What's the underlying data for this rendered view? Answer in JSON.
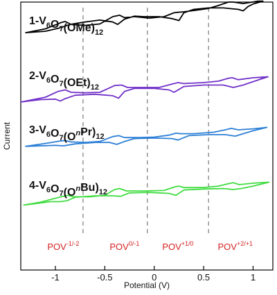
{
  "chart_data": {
    "type": "line",
    "title": "",
    "xlabel": "Potential (V)",
    "ylabel": "Current",
    "xlim": [
      -1.35,
      1.2
    ],
    "x_ticks": [
      {
        "value": -1,
        "label": "-1"
      },
      {
        "value": -0.5,
        "label": "-0.5"
      },
      {
        "value": 0,
        "label": "0"
      },
      {
        "value": 0.5,
        "label": "0.5"
      },
      {
        "value": 1,
        "label": "1"
      }
    ],
    "y_ticks_shown": false,
    "grid": false,
    "legend": "none",
    "reference_lines": [
      {
        "x": -0.72,
        "style": "dashed",
        "color": "#8c8c8c"
      },
      {
        "x": -0.07,
        "style": "dashed",
        "color": "#8c8c8c"
      },
      {
        "x": 0.55,
        "style": "dashed",
        "color": "#8c8c8c"
      }
    ],
    "series": [
      {
        "name_parts": [
          [
            "1-V",
            "n"
          ],
          [
            "6",
            "sub"
          ],
          [
            "O",
            "n"
          ],
          [
            "7",
            "sub"
          ],
          [
            "(OMe)",
            "n"
          ],
          [
            "12",
            "sub"
          ]
        ],
        "color": "#000000",
        "forward": [
          [
            -1.3,
            -0.03
          ],
          [
            -1.1,
            0.05
          ],
          [
            -0.94,
            0.18
          ],
          [
            -0.9,
            0.2
          ],
          [
            -0.84,
            0.14
          ],
          [
            -0.7,
            0.12
          ],
          [
            -0.55,
            0.15
          ],
          [
            -0.42,
            0.3
          ],
          [
            -0.35,
            0.33
          ],
          [
            -0.3,
            0.28
          ],
          [
            -0.2,
            0.3
          ],
          [
            -0.05,
            0.27
          ],
          [
            0.1,
            0.3
          ],
          [
            0.2,
            0.38
          ],
          [
            0.24,
            0.39
          ],
          [
            0.3,
            0.4
          ],
          [
            0.45,
            0.44
          ],
          [
            0.55,
            0.47
          ],
          [
            0.65,
            0.53
          ],
          [
            0.75,
            0.6
          ],
          [
            0.8,
            0.6
          ],
          [
            0.9,
            0.57
          ],
          [
            1.05,
            0.62
          ],
          [
            1.1,
            0.62
          ]
        ],
        "reverse": [
          [
            1.1,
            0.62
          ],
          [
            1.0,
            0.56
          ],
          [
            0.95,
            0.51
          ],
          [
            0.9,
            0.42
          ],
          [
            0.85,
            0.45
          ],
          [
            0.7,
            0.48
          ],
          [
            0.55,
            0.48
          ],
          [
            0.4,
            0.45
          ],
          [
            0.3,
            0.38
          ],
          [
            0.25,
            0.22
          ],
          [
            0.18,
            0.26
          ],
          [
            0.05,
            0.3
          ],
          [
            -0.1,
            0.3
          ],
          [
            -0.2,
            0.31
          ],
          [
            -0.3,
            0.25
          ],
          [
            -0.37,
            0.14
          ],
          [
            -0.42,
            0.19
          ],
          [
            -0.55,
            0.23
          ],
          [
            -0.7,
            0.19
          ],
          [
            -0.85,
            0.14
          ],
          [
            -0.97,
            0.06
          ],
          [
            -1.1,
            0.0
          ],
          [
            -1.3,
            -0.03
          ]
        ]
      },
      {
        "name_parts": [
          [
            "2-V",
            "n"
          ],
          [
            "6",
            "sub"
          ],
          [
            "O",
            "n"
          ],
          [
            "7",
            "sub"
          ],
          [
            "(OEt)",
            "n"
          ],
          [
            "12",
            "sub"
          ]
        ],
        "color": "#7030c8",
        "forward": [
          [
            -1.35,
            -0.2
          ],
          [
            -1.1,
            -0.1
          ],
          [
            -0.97,
            0.02
          ],
          [
            -0.9,
            0.05
          ],
          [
            -0.84,
            0.0
          ],
          [
            -0.7,
            -0.01
          ],
          [
            -0.55,
            0.0
          ],
          [
            -0.4,
            0.14
          ],
          [
            -0.33,
            0.15
          ],
          [
            -0.27,
            0.1
          ],
          [
            -0.1,
            0.1
          ],
          [
            0.05,
            0.1
          ],
          [
            0.2,
            0.18
          ],
          [
            0.24,
            0.2
          ],
          [
            0.3,
            0.18
          ],
          [
            0.5,
            0.2
          ],
          [
            0.65,
            0.23
          ],
          [
            0.75,
            0.29
          ],
          [
            0.79,
            0.3
          ],
          [
            0.85,
            0.26
          ],
          [
            1.0,
            0.3
          ],
          [
            1.15,
            0.32
          ]
        ],
        "reverse": [
          [
            1.15,
            0.32
          ],
          [
            1.0,
            0.22
          ],
          [
            0.9,
            0.15
          ],
          [
            0.8,
            0.1
          ],
          [
            0.7,
            0.15
          ],
          [
            0.5,
            0.15
          ],
          [
            0.3,
            0.12
          ],
          [
            0.2,
            0.0
          ],
          [
            0.15,
            0.05
          ],
          [
            0.0,
            0.08
          ],
          [
            -0.2,
            0.08
          ],
          [
            -0.3,
            0.02
          ],
          [
            -0.36,
            -0.12
          ],
          [
            -0.42,
            -0.07
          ],
          [
            -0.6,
            -0.04
          ],
          [
            -0.8,
            -0.06
          ],
          [
            -0.9,
            -0.13
          ],
          [
            -0.95,
            -0.18
          ],
          [
            -1.0,
            -0.14
          ],
          [
            -1.15,
            -0.15
          ],
          [
            -1.35,
            -0.2
          ]
        ]
      },
      {
        "name_parts": [
          [
            "3-V",
            "n"
          ],
          [
            "6",
            "sub"
          ],
          [
            "O",
            "n"
          ],
          [
            "7",
            "sub"
          ],
          [
            "(O",
            "n"
          ],
          [
            "n",
            "sup-it"
          ],
          [
            "Pr)",
            "n"
          ],
          [
            "12",
            "sub"
          ]
        ],
        "color": "#2b7fd6",
        "forward": [
          [
            -1.3,
            -0.04
          ],
          [
            -1.1,
            0.02
          ],
          [
            -0.95,
            0.07
          ],
          [
            -0.9,
            0.08
          ],
          [
            -0.84,
            0.05
          ],
          [
            -0.7,
            0.04
          ],
          [
            -0.55,
            0.06
          ],
          [
            -0.42,
            0.16
          ],
          [
            -0.36,
            0.18
          ],
          [
            -0.3,
            0.14
          ],
          [
            -0.15,
            0.14
          ],
          [
            0.0,
            0.15
          ],
          [
            0.15,
            0.19
          ],
          [
            0.22,
            0.23
          ],
          [
            0.27,
            0.22
          ],
          [
            0.4,
            0.22
          ],
          [
            0.6,
            0.25
          ],
          [
            0.72,
            0.3
          ],
          [
            0.78,
            0.33
          ],
          [
            0.85,
            0.3
          ],
          [
            1.0,
            0.32
          ],
          [
            1.14,
            0.35
          ]
        ],
        "reverse": [
          [
            1.14,
            0.35
          ],
          [
            1.0,
            0.28
          ],
          [
            0.9,
            0.22
          ],
          [
            0.82,
            0.17
          ],
          [
            0.72,
            0.2
          ],
          [
            0.55,
            0.2
          ],
          [
            0.35,
            0.18
          ],
          [
            0.24,
            0.09
          ],
          [
            0.18,
            0.12
          ],
          [
            0.0,
            0.13
          ],
          [
            -0.2,
            0.12
          ],
          [
            -0.3,
            0.06
          ],
          [
            -0.38,
            0.0
          ],
          [
            -0.45,
            0.04
          ],
          [
            -0.6,
            0.04
          ],
          [
            -0.8,
            0.01
          ],
          [
            -0.92,
            -0.03
          ],
          [
            -1.0,
            -0.02
          ],
          [
            -1.3,
            -0.04
          ]
        ]
      },
      {
        "name_parts": [
          [
            "4-V",
            "n"
          ],
          [
            "6",
            "sub"
          ],
          [
            "O",
            "n"
          ],
          [
            "7",
            "sub"
          ],
          [
            "(O",
            "n"
          ],
          [
            "n",
            "sup-it"
          ],
          [
            "Bu)",
            "n"
          ],
          [
            "12",
            "sub"
          ]
        ],
        "color": "#3fdc3f",
        "forward": [
          [
            -1.32,
            -0.12
          ],
          [
            -1.15,
            -0.06
          ],
          [
            -1.0,
            0.02
          ],
          [
            -0.92,
            0.06
          ],
          [
            -0.87,
            0.08
          ],
          [
            -0.82,
            0.05
          ],
          [
            -0.65,
            0.05
          ],
          [
            -0.5,
            0.08
          ],
          [
            -0.4,
            0.2
          ],
          [
            -0.35,
            0.22
          ],
          [
            -0.28,
            0.17
          ],
          [
            -0.1,
            0.17
          ],
          [
            0.1,
            0.18
          ],
          [
            0.2,
            0.25
          ],
          [
            0.25,
            0.27
          ],
          [
            0.3,
            0.24
          ],
          [
            0.5,
            0.24
          ],
          [
            0.65,
            0.27
          ],
          [
            0.75,
            0.32
          ],
          [
            0.8,
            0.34
          ],
          [
            0.86,
            0.3
          ],
          [
            1.0,
            0.33
          ],
          [
            1.16,
            0.35
          ]
        ],
        "reverse": [
          [
            1.16,
            0.35
          ],
          [
            1.0,
            0.27
          ],
          [
            0.88,
            0.22
          ],
          [
            0.8,
            0.2
          ],
          [
            0.7,
            0.22
          ],
          [
            0.5,
            0.21
          ],
          [
            0.3,
            0.19
          ],
          [
            0.22,
            0.08
          ],
          [
            0.15,
            0.12
          ],
          [
            -0.05,
            0.14
          ],
          [
            -0.25,
            0.13
          ],
          [
            -0.34,
            0.06
          ],
          [
            -0.42,
            0.07
          ],
          [
            -0.6,
            0.07
          ],
          [
            -0.8,
            0.04
          ],
          [
            -0.88,
            -0.03
          ],
          [
            -0.95,
            -0.05
          ],
          [
            -1.05,
            -0.05
          ],
          [
            -1.2,
            -0.09
          ],
          [
            -1.32,
            -0.12
          ]
        ]
      }
    ],
    "couples": [
      {
        "base": "POV",
        "sup": "-1/-2",
        "x": -0.92
      },
      {
        "base": "POV",
        "sup": "0/-1",
        "x": -0.3
      },
      {
        "base": "POV",
        "sup": "+1/0",
        "x": 0.24
      },
      {
        "base": "POV",
        "sup": "+2/+1",
        "x": 0.82
      }
    ],
    "couple_color": "#d42020"
  }
}
